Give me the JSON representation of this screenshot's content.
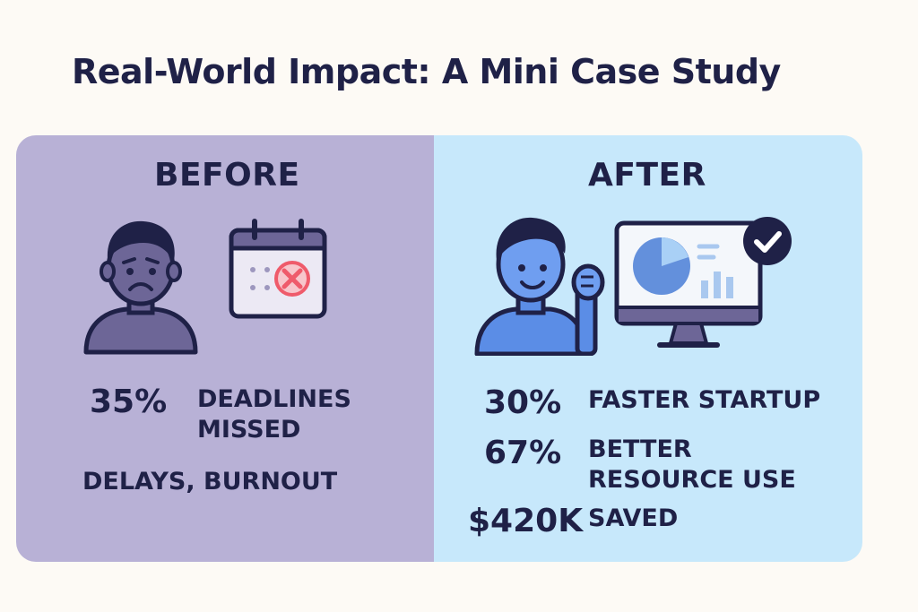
{
  "title": "Real-World Impact: A Mini Case Study",
  "before": {
    "heading": "BEFORE",
    "stat_value": "35%",
    "stat_label_line1": "DEADLINES",
    "stat_label_line2": "MISSED",
    "note": "DELAYS, BURNOUT",
    "icons": [
      "sad-person-icon",
      "calendar-missed-icon"
    ]
  },
  "after": {
    "heading": "AFTER",
    "stats": [
      {
        "value": "30%",
        "label_line1": "FASTER STARTUP",
        "label_line2": ""
      },
      {
        "value": "67%",
        "label_line1": "BETTER",
        "label_line2": "RESOURCE USE"
      },
      {
        "value": "$420K",
        "label_line1": "SAVED",
        "label_line2": ""
      }
    ],
    "icons": [
      "happy-person-icon",
      "dashboard-monitor-icon",
      "check-icon"
    ]
  },
  "colors": {
    "before_bg": "#b8b1d6",
    "after_bg": "#c7e8fb",
    "ink": "#1f2147",
    "alert_red": "#ef5b6b"
  }
}
